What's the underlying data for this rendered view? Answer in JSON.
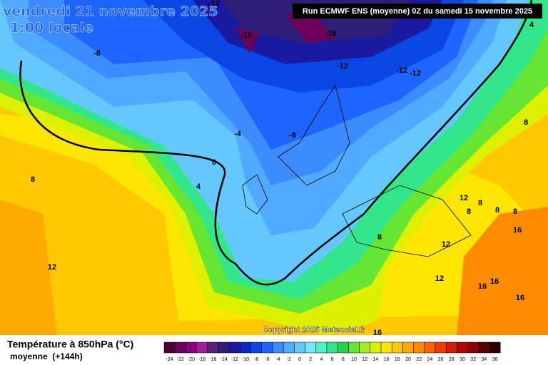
{
  "header": {
    "date": "vendredi 21 novembre 2025",
    "time": "1:00 locale",
    "run": "Run ECMWF ENS (moyenne) 0Z du samedi 15 novembre 2025"
  },
  "copyright": "Copyright 2025 Meteociel.fr",
  "legend": {
    "title": "Température à 850hPa (°C)",
    "subtitle": "moyenne  (+144h)",
    "ticks": [
      -24,
      -22,
      -20,
      -18,
      -16,
      -14,
      -12,
      -10,
      -8,
      -6,
      -4,
      -2,
      0,
      2,
      4,
      6,
      8,
      10,
      12,
      14,
      16,
      18,
      20,
      22,
      24,
      26,
      28,
      30,
      32,
      34,
      36
    ],
    "colors": [
      "#4b0037",
      "#6e005a",
      "#8c0080",
      "#a0209c",
      "#5a1e78",
      "#2e1e78",
      "#1a1aa0",
      "#0a28c8",
      "#0a46e6",
      "#1e64ff",
      "#3c8cff",
      "#50aaff",
      "#64c8ff",
      "#78e6ff",
      "#50f0c8",
      "#32e68c",
      "#28d250",
      "#64e632",
      "#a0f01e",
      "#dcf000",
      "#ffe600",
      "#ffc800",
      "#ffaa00",
      "#ff8c00",
      "#ff6400",
      "#f03c00",
      "#d21e00",
      "#b40000",
      "#8c0000",
      "#5a0000",
      "#280000"
    ]
  },
  "contour_labels": [
    -12,
    -16,
    -16,
    -8,
    -12,
    -12,
    -12,
    -8,
    -4,
    0,
    4,
    8,
    12,
    4,
    8,
    12,
    8,
    8,
    8,
    8,
    12,
    16,
    8,
    12,
    16,
    16,
    16,
    16
  ]
}
